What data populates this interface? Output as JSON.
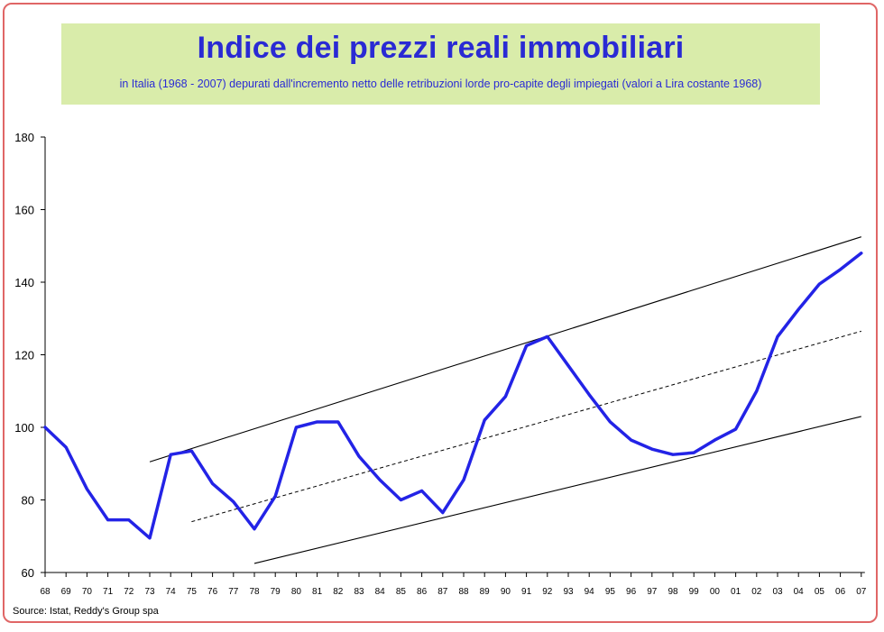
{
  "header": {
    "title": "Indice dei prezzi reali immobiliari",
    "subtitle": "in Italia (1968 - 2007) depurati dall'incremento netto delle retribuzioni lorde pro-capite degli impiegati (valori a Lira costante 1968)"
  },
  "footer": {
    "source": "Source: Istat, Reddy's Group spa"
  },
  "colors": {
    "series": "#2323e6",
    "frame": "#e06666",
    "title_bg": "#d9ecaa",
    "title_text": "#2a2ad4"
  },
  "chart_data": {
    "type": "line",
    "title": "Indice dei prezzi reali immobiliari",
    "xlabel": "",
    "ylabel": "",
    "ylim": [
      60,
      180
    ],
    "yticks": [
      60,
      80,
      100,
      120,
      140,
      160,
      180
    ],
    "grid": false,
    "legend": "none",
    "categories": [
      "68",
      "69",
      "70",
      "71",
      "72",
      "73",
      "74",
      "75",
      "76",
      "77",
      "78",
      "79",
      "80",
      "81",
      "82",
      "83",
      "84",
      "85",
      "86",
      "87",
      "88",
      "89",
      "90",
      "91",
      "92",
      "93",
      "94",
      "95",
      "96",
      "97",
      "98",
      "99",
      "00",
      "01",
      "02",
      "03",
      "04",
      "05",
      "06",
      "07"
    ],
    "series": [
      {
        "values": [
          100,
          94.5,
          83,
          74.5,
          74.5,
          69.5,
          92.5,
          93.5,
          84.5,
          79.5,
          72,
          81,
          100,
          101.5,
          101.5,
          92,
          85.5,
          80,
          82.5,
          76.5,
          85.5,
          102,
          108.5,
          122.5,
          125,
          117,
          109,
          101.5,
          96.5,
          94,
          92.5,
          93,
          96.5,
          99.5,
          110,
          125,
          132.5,
          139.5,
          143.5,
          148
        ]
      }
    ],
    "trend_lines": [
      {
        "style": "solid",
        "x_start": "73",
        "y_start": 90.5,
        "x_end": "07",
        "y_end": 152.5
      },
      {
        "style": "dashed",
        "x_start": "75",
        "y_start": 74,
        "x_end": "07",
        "y_end": 126.5
      },
      {
        "style": "solid",
        "x_start": "78",
        "y_start": 62.5,
        "x_end": "07",
        "y_end": 103
      }
    ]
  }
}
